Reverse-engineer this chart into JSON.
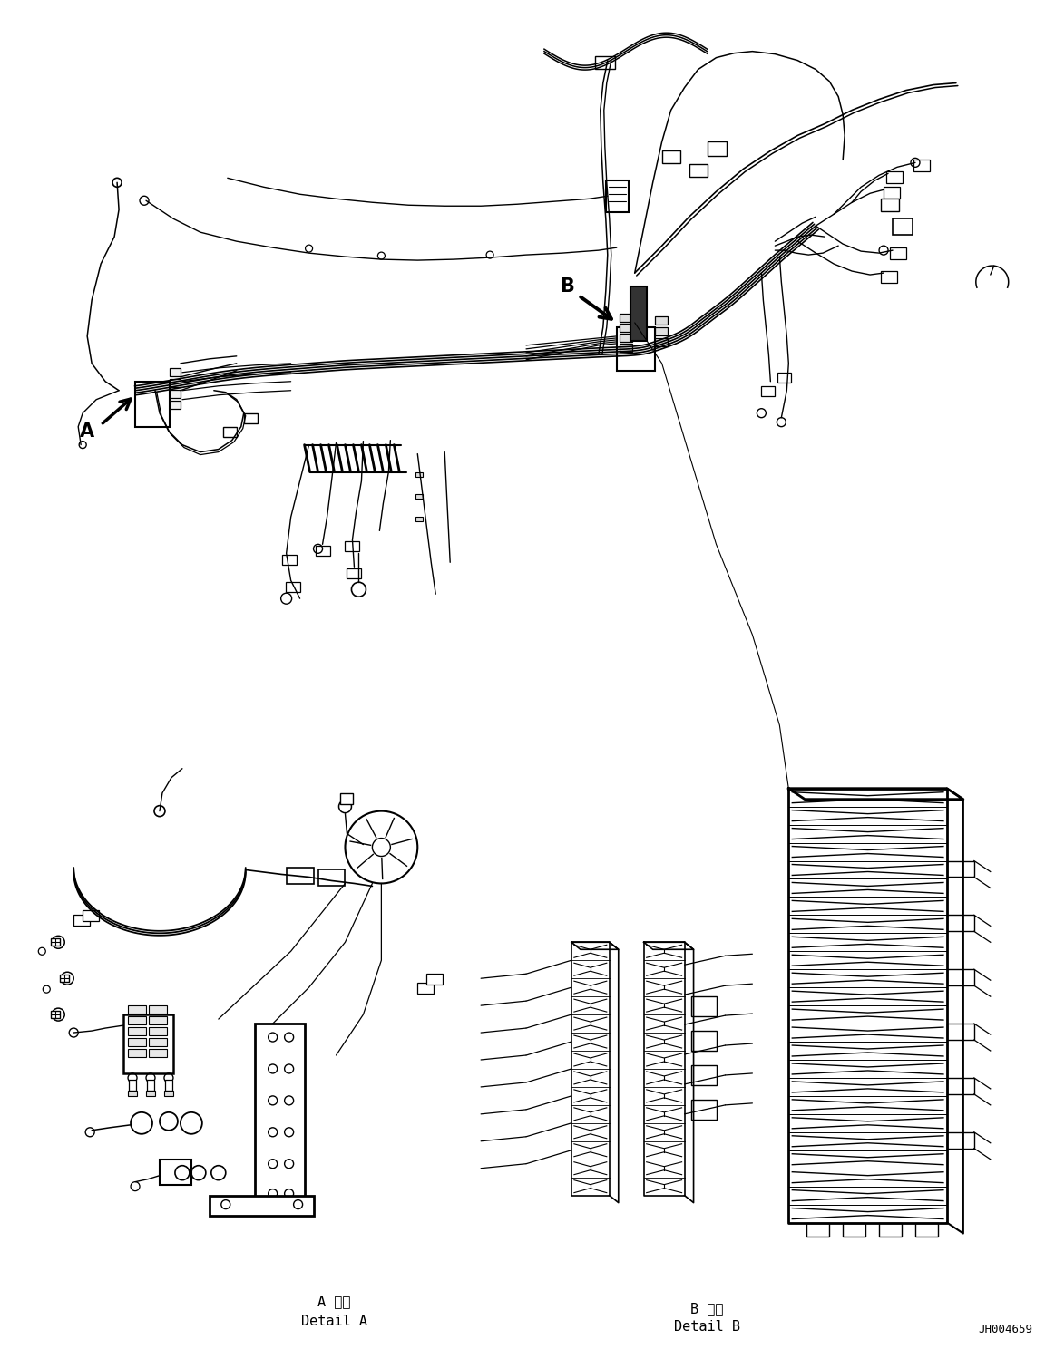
{
  "background_color": "#ffffff",
  "line_color": "#000000",
  "part_id": "JH004659",
  "detail_a_label_line1": "A 詳細",
  "detail_a_label_line2": "Detail A",
  "detail_b_label_line1": "B 詳細",
  "detail_b_label_line2": "Detail B",
  "fig_width": 11.63,
  "fig_height": 14.88,
  "dpi": 100
}
